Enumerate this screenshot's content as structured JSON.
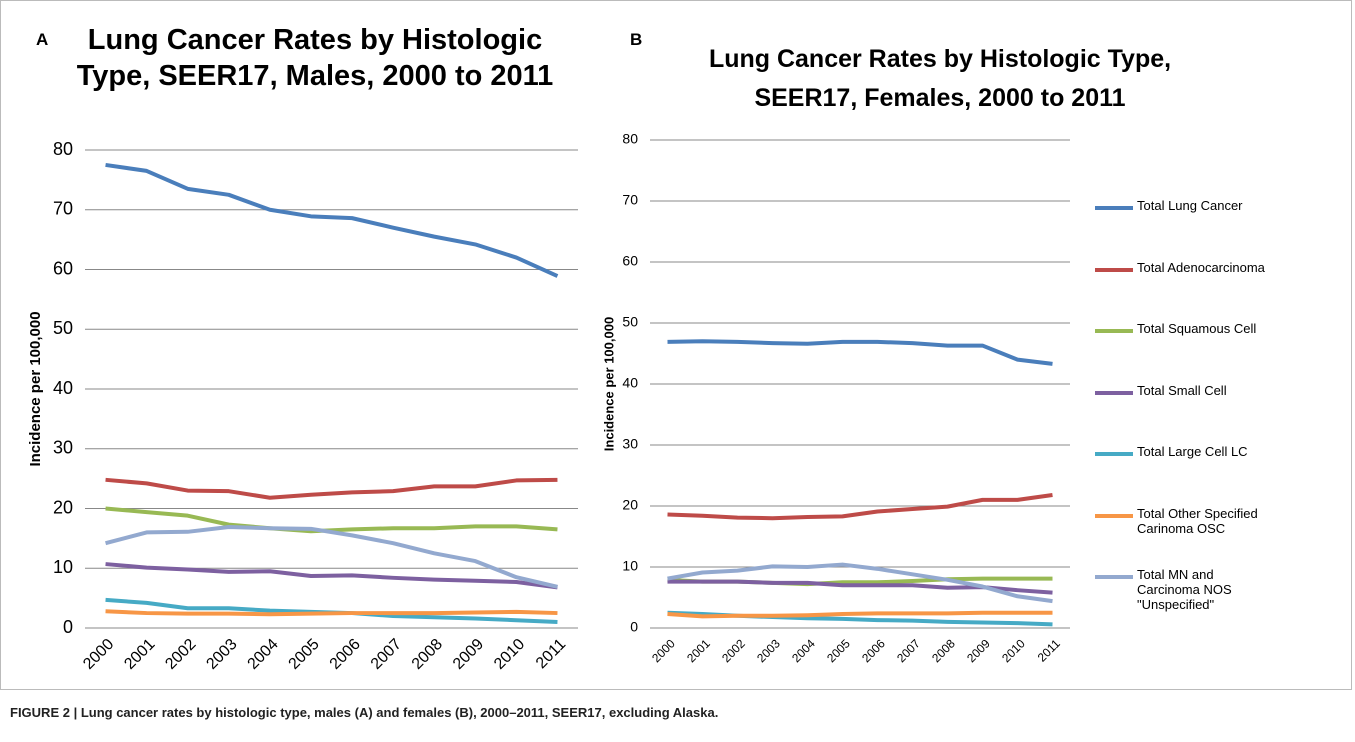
{
  "chart_data": [
    {
      "type": "line",
      "panel": "A",
      "title": "Lung Cancer Rates by Histologic Type, SEER17, Males, 2000 to 2011",
      "ylabel": "Incidence per 100,000",
      "categories": [
        "2000",
        "2001",
        "2002",
        "2003",
        "2004",
        "2005",
        "2006",
        "2007",
        "2008",
        "2009",
        "2010",
        "2011"
      ],
      "ylim": [
        0,
        80
      ],
      "yticks": [
        0,
        10,
        20,
        30,
        40,
        50,
        60,
        70,
        80
      ],
      "grid": true,
      "series": [
        {
          "color": "#4a7ebb",
          "values": [
            77.5,
            76.5,
            73.5,
            72.5,
            70,
            68.9,
            68.6,
            67,
            65.5,
            64.2,
            62,
            58.9
          ]
        },
        {
          "color": "#be4b48",
          "values": [
            24.8,
            24.2,
            23,
            22.9,
            21.8,
            22.3,
            22.7,
            22.9,
            23.7,
            23.7,
            24.7,
            24.8
          ]
        },
        {
          "color": "#98b954",
          "values": [
            20,
            19.4,
            18.8,
            17.3,
            16.7,
            16.2,
            16.5,
            16.7,
            16.7,
            17,
            17,
            16.5
          ]
        },
        {
          "color": "#7d60a0",
          "values": [
            10.7,
            10.1,
            9.8,
            9.4,
            9.5,
            8.7,
            8.8,
            8.4,
            8.1,
            7.9,
            7.7,
            6.8
          ]
        },
        {
          "color": "#46aac5",
          "values": [
            4.7,
            4.2,
            3.3,
            3.3,
            2.9,
            2.7,
            2.5,
            2,
            1.8,
            1.6,
            1.3,
            1.0
          ]
        },
        {
          "color": "#f79646",
          "values": [
            2.8,
            2.5,
            2.4,
            2.4,
            2.3,
            2.4,
            2.5,
            2.5,
            2.5,
            2.6,
            2.7,
            2.5
          ]
        },
        {
          "color": "#93a9cf",
          "values": [
            14.2,
            16,
            16.1,
            16.9,
            16.7,
            16.6,
            15.5,
            14.2,
            12.5,
            11.2,
            8.5,
            6.9
          ]
        }
      ]
    },
    {
      "type": "line",
      "panel": "B",
      "title": "Lung Cancer Rates by Histologic Type, SEER17, Females, 2000 to 2011",
      "ylabel": "Incidence per 100,000",
      "categories": [
        "2000",
        "2001",
        "2002",
        "2003",
        "2004",
        "2005",
        "2006",
        "2007",
        "2008",
        "2009",
        "2010",
        "2011"
      ],
      "ylim": [
        0,
        80
      ],
      "yticks": [
        0,
        10,
        20,
        30,
        40,
        50,
        60,
        70,
        80
      ],
      "grid": true,
      "legend": "right",
      "series": [
        {
          "name": "Total Lung Cancer",
          "color": "#4a7ebb",
          "values": [
            46.9,
            47,
            46.9,
            46.7,
            46.6,
            46.9,
            46.9,
            46.7,
            46.3,
            46.3,
            44,
            43.3
          ]
        },
        {
          "name": "Total Adenocarcinoma",
          "color": "#be4b48",
          "values": [
            18.6,
            18.4,
            18.1,
            18,
            18.2,
            18.3,
            19.1,
            19.5,
            19.9,
            21,
            21,
            21.8
          ]
        },
        {
          "name": "Total Squamous Cell",
          "color": "#98b954",
          "values": [
            7.9,
            7.6,
            7.6,
            7.4,
            7.2,
            7.5,
            7.5,
            7.7,
            8,
            8.1,
            8.1,
            8.1
          ]
        },
        {
          "name": "Total Small Cell",
          "color": "#7d60a0",
          "values": [
            7.6,
            7.6,
            7.6,
            7.4,
            7.4,
            7.0,
            7.0,
            7.0,
            6.6,
            6.7,
            6.2,
            5.8
          ]
        },
        {
          "name": "Total Large Cell LC",
          "color": "#46aac5",
          "values": [
            2.5,
            2.3,
            2.0,
            1.8,
            1.6,
            1.5,
            1.3,
            1.2,
            1.0,
            0.9,
            0.8,
            0.6
          ]
        },
        {
          "name": "Total Other Specified Carinoma OSC",
          "color": "#f79646",
          "values": [
            2.3,
            1.9,
            2.0,
            2.0,
            2.1,
            2.3,
            2.4,
            2.4,
            2.4,
            2.5,
            2.5,
            2.5
          ]
        },
        {
          "name": "Total MN and Carcinoma NOS \"Unspecified\"",
          "color": "#93a9cf",
          "values": [
            8.1,
            9.1,
            9.4,
            10.1,
            10,
            10.4,
            9.7,
            8.8,
            7.9,
            6.8,
            5.2,
            4.4
          ]
        }
      ]
    }
  ],
  "caption": "FIGURE 2 | Lung cancer rates by histologic type, males (A) and females (B), 2000–2011, SEER17, excluding Alaska."
}
